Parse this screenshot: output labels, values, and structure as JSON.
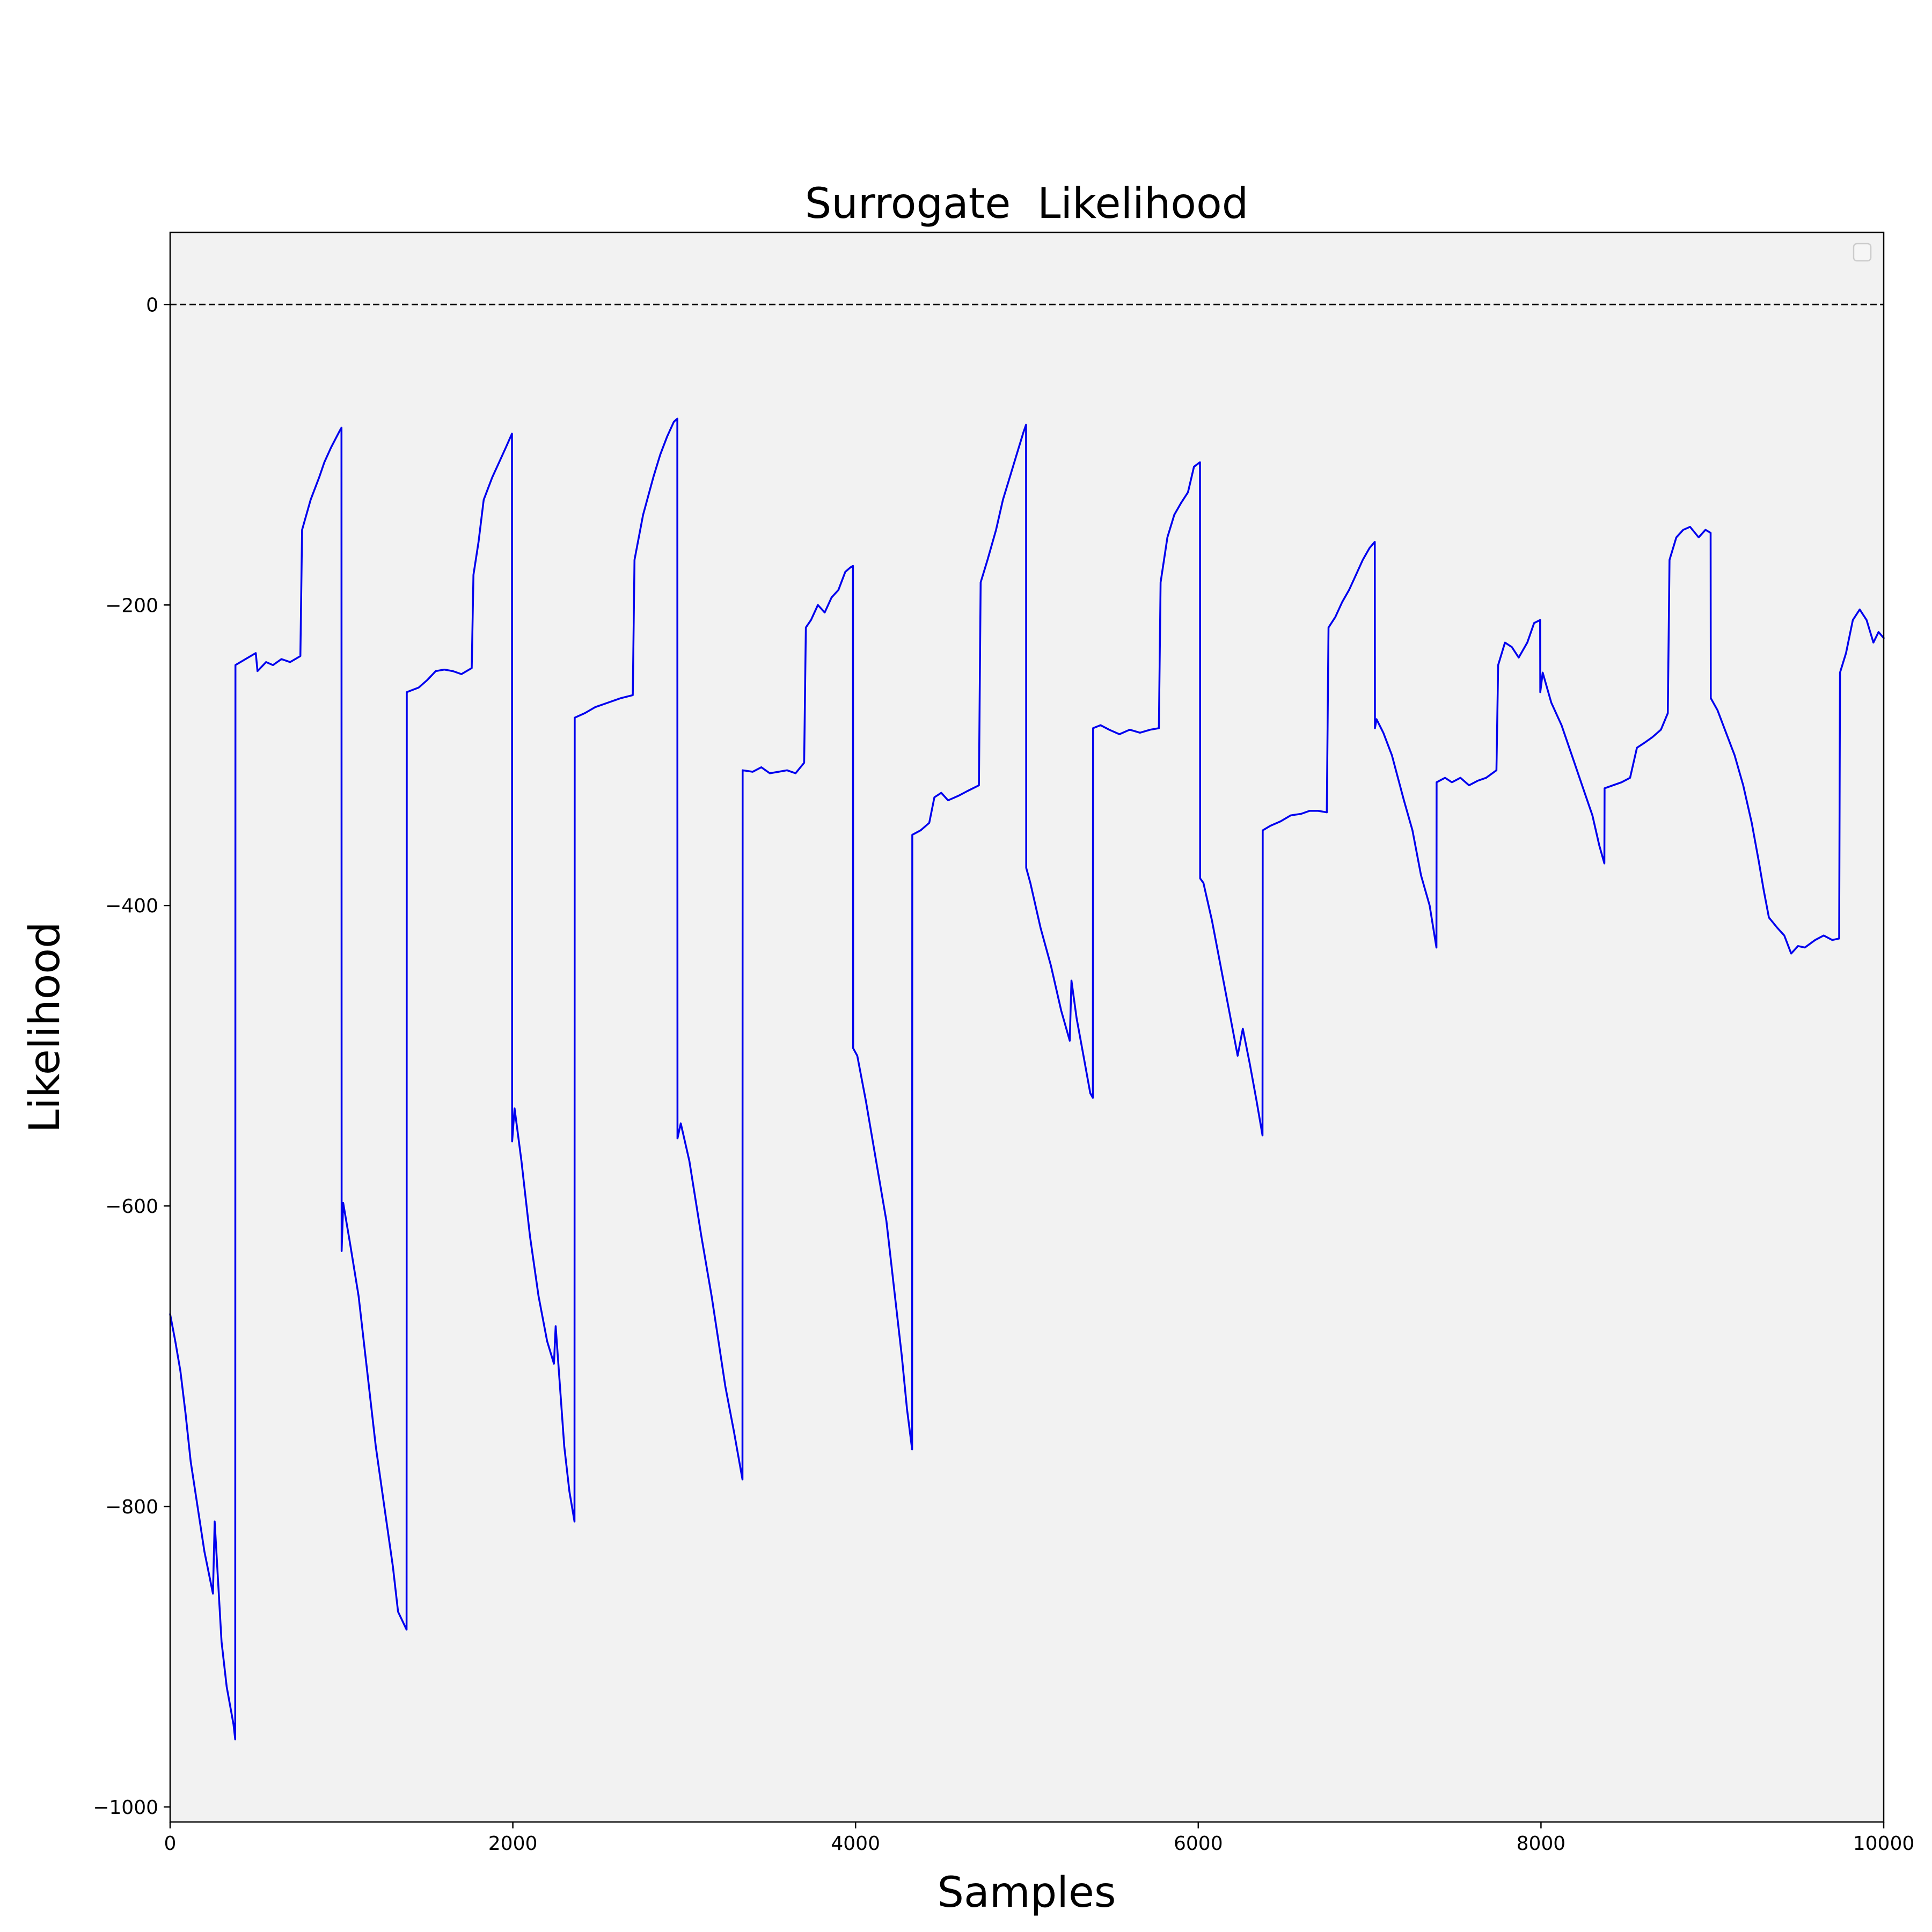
{
  "chart_data": {
    "type": "line",
    "title": "Surrogate  Likelihood",
    "xlabel": "Samples",
    "ylabel": "Likelihood",
    "xlim": [
      0,
      10000
    ],
    "ylim": [
      -1010,
      48
    ],
    "x_ticks": [
      0,
      2000,
      4000,
      6000,
      8000,
      10000
    ],
    "x_tick_labels": [
      "0",
      "2000",
      "4000",
      "6000",
      "8000",
      "10000"
    ],
    "y_ticks": [
      0,
      -200,
      -400,
      -600,
      -800,
      -1000
    ],
    "y_tick_labels": [
      "0",
      "−200",
      "−400",
      "−600",
      "−800",
      "−1000"
    ],
    "reference_line": {
      "y": 0,
      "style": "dashed",
      "color": "#000000"
    },
    "legend": {
      "position": "top-right",
      "entries": []
    },
    "grid": false,
    "colors": {
      "series": "#0000ee",
      "plot_background": "#f2f2f2",
      "page_background": "#ffffff"
    },
    "series": [
      {
        "points": [
          [
            0,
            -672
          ],
          [
            30,
            -690
          ],
          [
            60,
            -710
          ],
          [
            90,
            -738
          ],
          [
            120,
            -770
          ],
          [
            160,
            -800
          ],
          [
            200,
            -830
          ],
          [
            250,
            -858
          ],
          [
            260,
            -810
          ],
          [
            280,
            -850
          ],
          [
            300,
            -890
          ],
          [
            330,
            -920
          ],
          [
            370,
            -945
          ],
          [
            380,
            -955
          ],
          [
            381,
            -240
          ],
          [
            440,
            -236
          ],
          [
            500,
            -232
          ],
          [
            510,
            -244
          ],
          [
            560,
            -238
          ],
          [
            600,
            -240
          ],
          [
            650,
            -236
          ],
          [
            700,
            -238
          ],
          [
            760,
            -234
          ],
          [
            770,
            -150
          ],
          [
            820,
            -130
          ],
          [
            870,
            -115
          ],
          [
            900,
            -105
          ],
          [
            940,
            -95
          ],
          [
            990,
            -84
          ],
          [
            1000,
            -82
          ],
          [
            1001,
            -630
          ],
          [
            1010,
            -598
          ],
          [
            1050,
            -625
          ],
          [
            1100,
            -660
          ],
          [
            1150,
            -710
          ],
          [
            1200,
            -760
          ],
          [
            1250,
            -800
          ],
          [
            1300,
            -840
          ],
          [
            1330,
            -870
          ],
          [
            1380,
            -882
          ],
          [
            1381,
            -258
          ],
          [
            1450,
            -255
          ],
          [
            1500,
            -250
          ],
          [
            1550,
            -244
          ],
          [
            1600,
            -243
          ],
          [
            1650,
            -244
          ],
          [
            1700,
            -246
          ],
          [
            1760,
            -242
          ],
          [
            1770,
            -180
          ],
          [
            1800,
            -158
          ],
          [
            1830,
            -130
          ],
          [
            1880,
            -115
          ],
          [
            1920,
            -105
          ],
          [
            1960,
            -95
          ],
          [
            1995,
            -86
          ],
          [
            1996,
            -557
          ],
          [
            2010,
            -535
          ],
          [
            2050,
            -570
          ],
          [
            2100,
            -620
          ],
          [
            2150,
            -660
          ],
          [
            2200,
            -690
          ],
          [
            2240,
            -705
          ],
          [
            2250,
            -680
          ],
          [
            2300,
            -760
          ],
          [
            2330,
            -790
          ],
          [
            2360,
            -810
          ],
          [
            2361,
            -275
          ],
          [
            2420,
            -272
          ],
          [
            2480,
            -268
          ],
          [
            2530,
            -266
          ],
          [
            2580,
            -264
          ],
          [
            2630,
            -262
          ],
          [
            2700,
            -260
          ],
          [
            2710,
            -170
          ],
          [
            2760,
            -140
          ],
          [
            2820,
            -115
          ],
          [
            2860,
            -100
          ],
          [
            2900,
            -88
          ],
          [
            2940,
            -78
          ],
          [
            2960,
            -76
          ],
          [
            2961,
            -555
          ],
          [
            2980,
            -545
          ],
          [
            3030,
            -570
          ],
          [
            3100,
            -620
          ],
          [
            3160,
            -660
          ],
          [
            3200,
            -690
          ],
          [
            3240,
            -720
          ],
          [
            3290,
            -750
          ],
          [
            3340,
            -782
          ],
          [
            3341,
            -310
          ],
          [
            3400,
            -311
          ],
          [
            3450,
            -308
          ],
          [
            3500,
            -312
          ],
          [
            3550,
            -311
          ],
          [
            3600,
            -310
          ],
          [
            3650,
            -312
          ],
          [
            3700,
            -305
          ],
          [
            3710,
            -215
          ],
          [
            3740,
            -210
          ],
          [
            3780,
            -200
          ],
          [
            3820,
            -205
          ],
          [
            3860,
            -195
          ],
          [
            3900,
            -190
          ],
          [
            3940,
            -178
          ],
          [
            3970,
            -175
          ],
          [
            3985,
            -174
          ],
          [
            3986,
            -495
          ],
          [
            4010,
            -500
          ],
          [
            4060,
            -530
          ],
          [
            4120,
            -570
          ],
          [
            4180,
            -610
          ],
          [
            4230,
            -660
          ],
          [
            4270,
            -700
          ],
          [
            4300,
            -735
          ],
          [
            4330,
            -762
          ],
          [
            4331,
            -353
          ],
          [
            4380,
            -350
          ],
          [
            4430,
            -345
          ],
          [
            4460,
            -328
          ],
          [
            4500,
            -325
          ],
          [
            4540,
            -330
          ],
          [
            4600,
            -327
          ],
          [
            4650,
            -324
          ],
          [
            4720,
            -320
          ],
          [
            4730,
            -185
          ],
          [
            4770,
            -170
          ],
          [
            4820,
            -150
          ],
          [
            4860,
            -130
          ],
          [
            4900,
            -115
          ],
          [
            4940,
            -100
          ],
          [
            4980,
            -85
          ],
          [
            4995,
            -80
          ],
          [
            4996,
            -375
          ],
          [
            5020,
            -385
          ],
          [
            5080,
            -415
          ],
          [
            5140,
            -440
          ],
          [
            5200,
            -470
          ],
          [
            5250,
            -490
          ],
          [
            5260,
            -450
          ],
          [
            5290,
            -475
          ],
          [
            5330,
            -500
          ],
          [
            5370,
            -525
          ],
          [
            5385,
            -528
          ],
          [
            5386,
            -282
          ],
          [
            5430,
            -280
          ],
          [
            5480,
            -283
          ],
          [
            5540,
            -286
          ],
          [
            5600,
            -283
          ],
          [
            5660,
            -285
          ],
          [
            5720,
            -283
          ],
          [
            5770,
            -282
          ],
          [
            5780,
            -185
          ],
          [
            5820,
            -155
          ],
          [
            5860,
            -140
          ],
          [
            5900,
            -132
          ],
          [
            5940,
            -125
          ],
          [
            5975,
            -108
          ],
          [
            6010,
            -105
          ],
          [
            6011,
            -382
          ],
          [
            6030,
            -385
          ],
          [
            6080,
            -410
          ],
          [
            6130,
            -440
          ],
          [
            6180,
            -470
          ],
          [
            6230,
            -500
          ],
          [
            6260,
            -482
          ],
          [
            6300,
            -505
          ],
          [
            6340,
            -530
          ],
          [
            6375,
            -553
          ],
          [
            6376,
            -350
          ],
          [
            6420,
            -347
          ],
          [
            6480,
            -344
          ],
          [
            6540,
            -340
          ],
          [
            6600,
            -339
          ],
          [
            6650,
            -337
          ],
          [
            6700,
            -337
          ],
          [
            6750,
            -338
          ],
          [
            6760,
            -215
          ],
          [
            6800,
            -208
          ],
          [
            6840,
            -198
          ],
          [
            6880,
            -190
          ],
          [
            6920,
            -180
          ],
          [
            6960,
            -170
          ],
          [
            7000,
            -162
          ],
          [
            7030,
            -158
          ],
          [
            7031,
            -282
          ],
          [
            7040,
            -276
          ],
          [
            7080,
            -285
          ],
          [
            7130,
            -300
          ],
          [
            7200,
            -330
          ],
          [
            7250,
            -350
          ],
          [
            7300,
            -380
          ],
          [
            7350,
            -400
          ],
          [
            7390,
            -428
          ],
          [
            7391,
            -318
          ],
          [
            7440,
            -315
          ],
          [
            7480,
            -318
          ],
          [
            7530,
            -315
          ],
          [
            7580,
            -320
          ],
          [
            7630,
            -317
          ],
          [
            7680,
            -315
          ],
          [
            7740,
            -310
          ],
          [
            7750,
            -240
          ],
          [
            7790,
            -225
          ],
          [
            7830,
            -228
          ],
          [
            7870,
            -235
          ],
          [
            7920,
            -225
          ],
          [
            7960,
            -212
          ],
          [
            7995,
            -210
          ],
          [
            7996,
            -258
          ],
          [
            8010,
            -245
          ],
          [
            8060,
            -265
          ],
          [
            8120,
            -280
          ],
          [
            8180,
            -300
          ],
          [
            8240,
            -320
          ],
          [
            8300,
            -340
          ],
          [
            8340,
            -360
          ],
          [
            8370,
            -372
          ],
          [
            8371,
            -322
          ],
          [
            8420,
            -320
          ],
          [
            8470,
            -318
          ],
          [
            8520,
            -315
          ],
          [
            8560,
            -295
          ],
          [
            8600,
            -292
          ],
          [
            8650,
            -288
          ],
          [
            8700,
            -283
          ],
          [
            8740,
            -272
          ],
          [
            8750,
            -170
          ],
          [
            8790,
            -155
          ],
          [
            8830,
            -150
          ],
          [
            8870,
            -148
          ],
          [
            8920,
            -155
          ],
          [
            8960,
            -150
          ],
          [
            8990,
            -152
          ],
          [
            8991,
            -262
          ],
          [
            9030,
            -270
          ],
          [
            9080,
            -285
          ],
          [
            9130,
            -300
          ],
          [
            9180,
            -320
          ],
          [
            9230,
            -345
          ],
          [
            9270,
            -370
          ],
          [
            9300,
            -390
          ],
          [
            9330,
            -408
          ],
          [
            9380,
            -415
          ],
          [
            9420,
            -420
          ],
          [
            9460,
            -432
          ],
          [
            9500,
            -427
          ],
          [
            9540,
            -428
          ],
          [
            9600,
            -423
          ],
          [
            9650,
            -420
          ],
          [
            9700,
            -423
          ],
          [
            9740,
            -422
          ],
          [
            9745,
            -245
          ],
          [
            9780,
            -232
          ],
          [
            9820,
            -210
          ],
          [
            9860,
            -203
          ],
          [
            9900,
            -210
          ],
          [
            9940,
            -225
          ],
          [
            9970,
            -218
          ],
          [
            10000,
            -222
          ]
        ]
      }
    ]
  }
}
